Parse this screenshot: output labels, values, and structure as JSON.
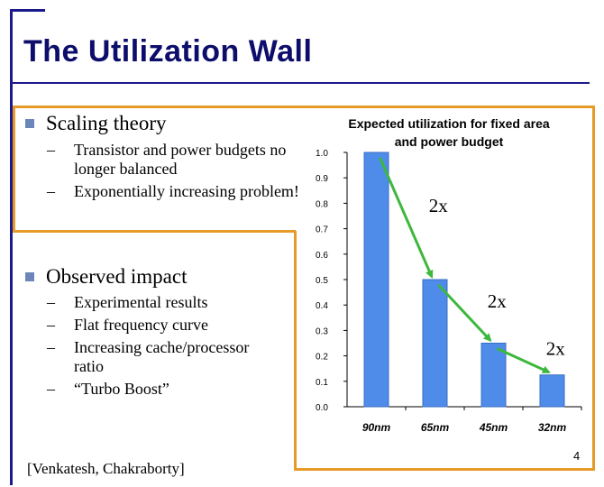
{
  "slide": {
    "title": "The Utilization Wall",
    "bullets": [
      {
        "text": "Scaling theory",
        "subs": [
          "Transistor and power budgets no longer balanced",
          "Exponentially increasing problem!"
        ]
      },
      {
        "text": "Observed impact",
        "subs": [
          "Experimental results",
          "Flat frequency curve",
          "Increasing cache/processor ratio",
          "“Turbo Boost”"
        ]
      }
    ],
    "citation": "[Venkatesh, Chakraborty]",
    "page_number": "4",
    "accent_color": "#e69a28",
    "title_color": "#0d0d6b"
  },
  "chart_data": {
    "type": "bar",
    "title_lines": [
      "Expected utilization for fixed area",
      "and power budget"
    ],
    "categories": [
      "90nm",
      "65nm",
      "45nm",
      "32nm"
    ],
    "values": [
      1.0,
      0.5,
      0.25,
      0.125
    ],
    "ylim": [
      0,
      1.0
    ],
    "yticks": [
      "0.0",
      "0.1",
      "0.2",
      "0.3",
      "0.4",
      "0.5",
      "0.6",
      "0.7",
      "0.8",
      "0.9",
      "1.0"
    ],
    "xlabel": "",
    "ylabel": "",
    "grid": false,
    "bar_color": "#4f8be8",
    "arrow_color": "#3db83d",
    "annotations": [
      "2x",
      "2x",
      "2x"
    ]
  }
}
